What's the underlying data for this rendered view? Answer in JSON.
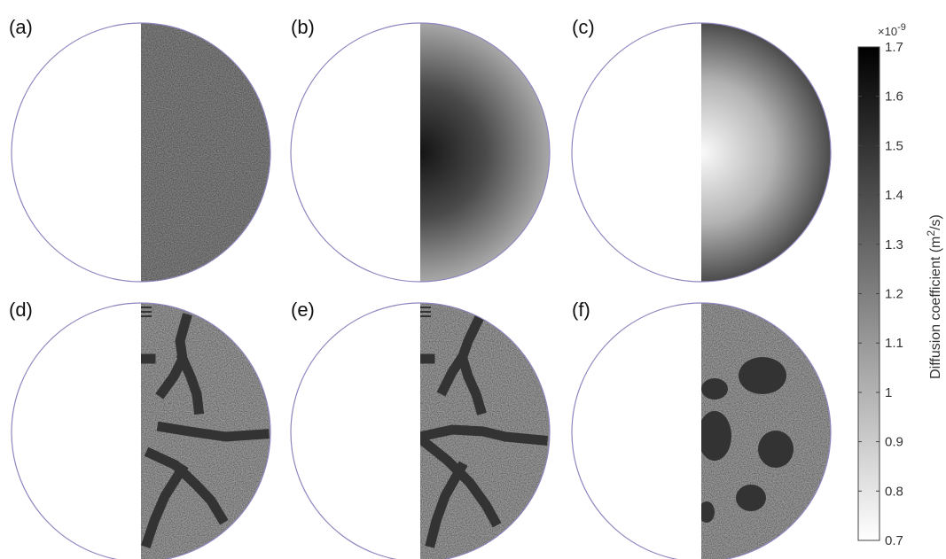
{
  "chart_data": {
    "type": "heatmap",
    "panels": [
      {
        "label": "(a)",
        "pattern": "uniform-noise",
        "mean_value": 1.2
      },
      {
        "label": "(b)",
        "pattern": "radial-dark-center",
        "center_value": 1.7,
        "edge_value": 1.0
      },
      {
        "label": "(c)",
        "pattern": "radial-light-center",
        "center_value": 0.7,
        "edge_value": 1.6
      },
      {
        "label": "(d)",
        "pattern": "noise-with-dark-cracks",
        "matrix_value": 1.1,
        "feature_value": 1.5
      },
      {
        "label": "(e)",
        "pattern": "noise-with-dark-cracks",
        "matrix_value": 1.1,
        "feature_value": 1.5
      },
      {
        "label": "(f)",
        "pattern": "noise-with-dark-blobs",
        "matrix_value": 1.1,
        "feature_value": 1.5
      }
    ],
    "colorbar": {
      "label": "Diffusion coefficient (m²/s)",
      "label_text": "Diffusion coefficient (m",
      "label_sup": "2",
      "label_end": "/s)",
      "multiplier": "×10",
      "multiplier_exp": "-9",
      "range": [
        0.7,
        1.7
      ],
      "ticks": [
        "0.7",
        "0.8",
        "0.9",
        "1",
        "1.1",
        "1.2",
        "1.3",
        "1.4",
        "1.5",
        "1.6",
        "1.7"
      ],
      "colormap": "gray-reversed"
    }
  },
  "colors": {
    "circle_outline": "#8c87c0",
    "background": "#ffffff"
  }
}
